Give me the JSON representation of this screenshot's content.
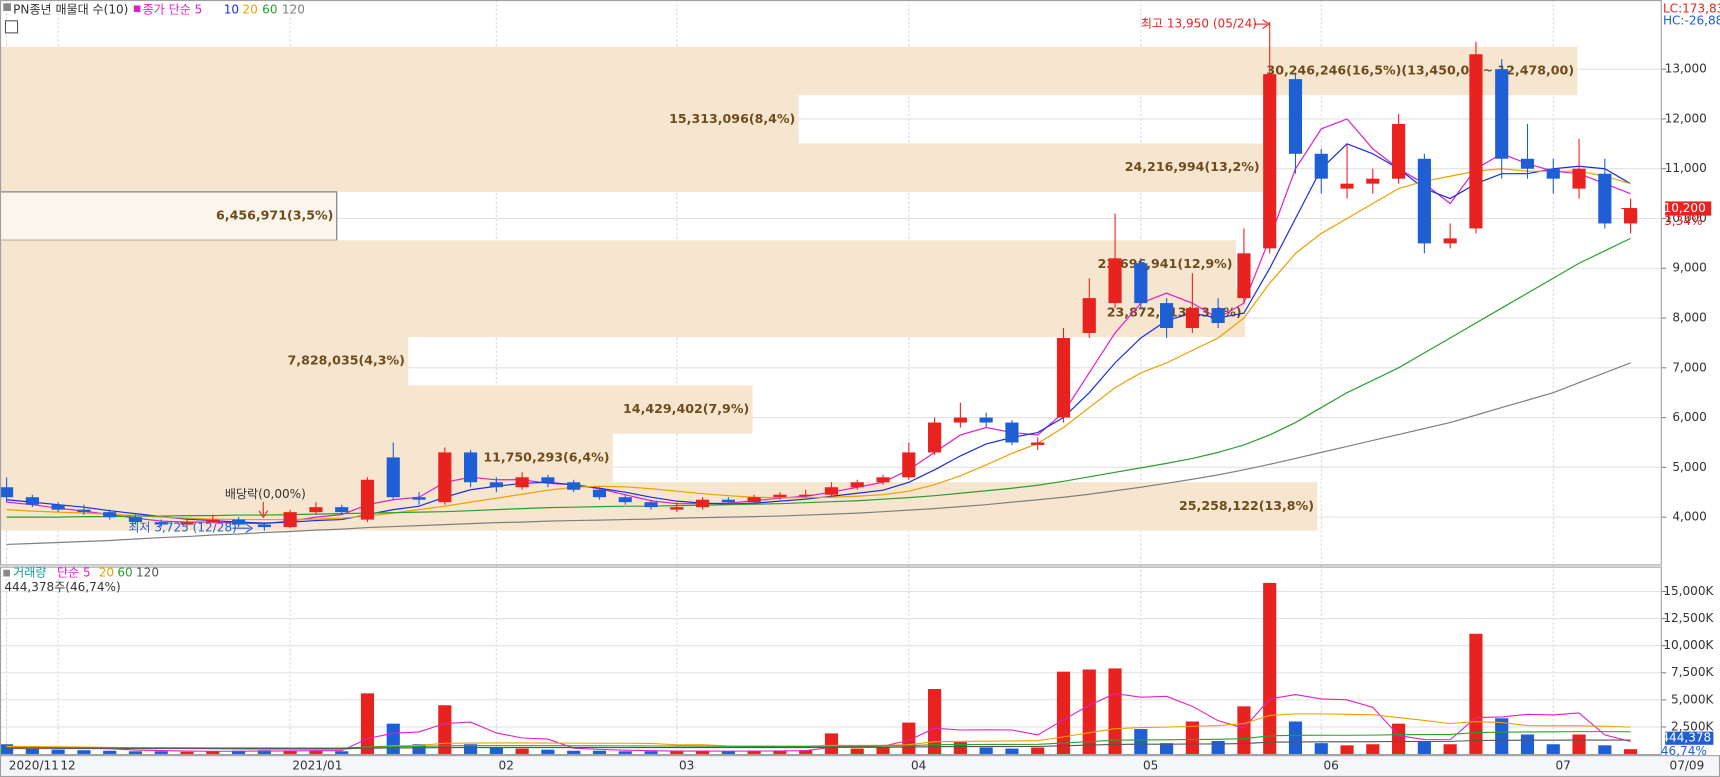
{
  "chart_data": [
    {
      "type": "candlestick",
      "title": "PN종년 매물대 수(10)",
      "categories": [
        "2020/11",
        null,
        "12",
        null,
        null,
        null,
        null,
        null,
        null,
        null,
        null,
        "2021/01",
        null,
        null,
        null,
        null,
        null,
        null,
        null,
        "02",
        null,
        null,
        null,
        null,
        null,
        null,
        "03",
        null,
        null,
        null,
        null,
        null,
        null,
        null,
        null,
        "04",
        null,
        null,
        null,
        null,
        null,
        null,
        null,
        null,
        "05",
        null,
        null,
        null,
        null,
        null,
        null,
        "06",
        null,
        null,
        null,
        null,
        null,
        null,
        null,
        null,
        "07",
        null,
        null,
        null
      ],
      "current_date": "07/09",
      "open": [
        4600,
        4400,
        4250,
        4150,
        4100,
        4000,
        3900,
        3850,
        3900,
        3950,
        3850,
        3800,
        4100,
        4200,
        3950,
        5200,
        4400,
        4300,
        5300,
        4700,
        4600,
        4800,
        4700,
        4550,
        4400,
        4300,
        4150,
        4200,
        4350,
        4300,
        4400,
        4420,
        4450,
        4600,
        4700,
        4800,
        5300,
        5900,
        6000,
        5900,
        5450,
        6000,
        7700,
        8300,
        9100,
        8300,
        7800,
        8200,
        8400,
        9400,
        12800,
        11300,
        10600,
        10700,
        10800,
        11200,
        9500,
        9800,
        13000,
        11200,
        11000,
        10600,
        10900,
        9900
      ],
      "high": [
        4800,
        4450,
        4300,
        4250,
        4150,
        4050,
        3950,
        3950,
        4050,
        4000,
        3900,
        4150,
        4300,
        4250,
        4800,
        5500,
        4500,
        5400,
        5350,
        4800,
        4900,
        4850,
        4750,
        4600,
        4450,
        4350,
        4300,
        4400,
        4400,
        4450,
        4500,
        4550,
        4700,
        4750,
        4850,
        5500,
        6000,
        6300,
        6100,
        5950,
        5600,
        7800,
        8800,
        10100,
        9200,
        8400,
        8900,
        8400,
        9800,
        13950,
        12900,
        11400,
        11500,
        11000,
        12100,
        11300,
        9900,
        13550,
        13200,
        11900,
        11200,
        11600,
        11200,
        10400
      ],
      "low": [
        4300,
        4200,
        4100,
        4050,
        3950,
        3850,
        3800,
        3820,
        3880,
        3800,
        3725,
        3780,
        4050,
        4050,
        3900,
        4350,
        4250,
        4250,
        4600,
        4500,
        4550,
        4600,
        4500,
        4350,
        4250,
        4150,
        4100,
        4150,
        4250,
        4250,
        4350,
        4400,
        4400,
        4550,
        4650,
        4750,
        5250,
        5800,
        5800,
        5450,
        5350,
        5900,
        7600,
        8200,
        8200,
        7600,
        7700,
        7800,
        8300,
        9300,
        10900,
        10500,
        10400,
        10500,
        10700,
        9300,
        9400,
        9700,
        10800,
        10800,
        10500,
        10400,
        9800,
        9700
      ],
      "close": [
        4400,
        4250,
        4150,
        4100,
        4000,
        3900,
        3850,
        3900,
        3950,
        3850,
        3800,
        4100,
        4200,
        4100,
        4750,
        4400,
        4350,
        5300,
        4700,
        4600,
        4800,
        4700,
        4550,
        4400,
        4300,
        4200,
        4200,
        4350,
        4300,
        4400,
        4450,
        4450,
        4600,
        4700,
        4800,
        5300,
        5900,
        6000,
        5900,
        5500,
        5500,
        7600,
        8400,
        9200,
        8300,
        7800,
        8200,
        7900,
        9300,
        12900,
        11300,
        10800,
        10700,
        10800,
        11900,
        9500,
        9600,
        13300,
        11200,
        11000,
        10800,
        11000,
        9900,
        10200
      ],
      "up_color": "#e8231f",
      "down_color": "#1f5fd6",
      "ma_series": [
        {
          "name": "종가 단순 5",
          "color": "#e020c8",
          "values": [
            4300,
            4250,
            4180,
            4120,
            4050,
            3980,
            3920,
            3900,
            3900,
            3880,
            3870,
            3920,
            4000,
            4050,
            4250,
            4350,
            4400,
            4700,
            4800,
            4750,
            4750,
            4680,
            4650,
            4570,
            4450,
            4330,
            4270,
            4270,
            4280,
            4330,
            4380,
            4420,
            4500,
            4600,
            4700,
            4950,
            5300,
            5650,
            5800,
            5700,
            5650,
            6100,
            6900,
            7700,
            8300,
            8500,
            8300,
            8000,
            8300,
            9600,
            11000,
            11800,
            12000,
            11400,
            11000,
            10700,
            10300,
            11000,
            11300,
            11100,
            10950,
            10900,
            10700,
            10500
          ]
        },
        {
          "name": "10",
          "color": "#1a2ee0",
          "values": [
            4350,
            4300,
            4250,
            4200,
            4130,
            4070,
            4010,
            3960,
            3930,
            3900,
            3880,
            3900,
            3930,
            3950,
            4050,
            4150,
            4220,
            4400,
            4550,
            4620,
            4680,
            4700,
            4650,
            4580,
            4500,
            4400,
            4320,
            4280,
            4260,
            4280,
            4320,
            4360,
            4420,
            4480,
            4540,
            4700,
            4950,
            5230,
            5470,
            5600,
            5700,
            6000,
            6500,
            7100,
            7600,
            7950,
            8100,
            8000,
            8100,
            9000,
            10000,
            11000,
            11500,
            11300,
            11000,
            10600,
            10400,
            10700,
            10900,
            10900,
            11000,
            11050,
            11000,
            10700
          ]
        },
        {
          "name": "20",
          "color": "#f0a000",
          "values": [
            4150,
            4120,
            4100,
            4080,
            4060,
            4030,
            4000,
            3980,
            3960,
            3950,
            3950,
            3950,
            3960,
            3980,
            4020,
            4080,
            4150,
            4220,
            4300,
            4380,
            4460,
            4540,
            4600,
            4620,
            4610,
            4570,
            4520,
            4470,
            4430,
            4400,
            4390,
            4390,
            4400,
            4420,
            4450,
            4520,
            4650,
            4830,
            5050,
            5280,
            5480,
            5800,
            6200,
            6600,
            6900,
            7100,
            7350,
            7600,
            8000,
            8700,
            9300,
            9700,
            10000,
            10300,
            10600,
            10750,
            10850,
            10950,
            11000,
            10950,
            10950,
            10950,
            10850,
            10700
          ]
        },
        {
          "name": "60",
          "color": "#2aa02a",
          "values": [
            4000,
            4000,
            4000,
            4010,
            4010,
            4020,
            4020,
            4030,
            4030,
            4040,
            4040,
            4050,
            4060,
            4070,
            4080,
            4090,
            4100,
            4110,
            4130,
            4150,
            4170,
            4190,
            4200,
            4210,
            4220,
            4220,
            4230,
            4240,
            4250,
            4260,
            4270,
            4290,
            4310,
            4330,
            4360,
            4390,
            4430,
            4480,
            4530,
            4580,
            4640,
            4720,
            4810,
            4900,
            4990,
            5080,
            5180,
            5300,
            5450,
            5650,
            5900,
            6200,
            6500,
            6750,
            7000,
            7300,
            7600,
            7900,
            8200,
            8500,
            8800,
            9100,
            9350,
            9600
          ]
        },
        {
          "name": "120",
          "color": "#808080",
          "values": [
            3450,
            3470,
            3490,
            3510,
            3530,
            3560,
            3590,
            3610,
            3640,
            3660,
            3690,
            3710,
            3740,
            3760,
            3790,
            3810,
            3830,
            3850,
            3870,
            3890,
            3900,
            3920,
            3930,
            3940,
            3950,
            3960,
            3980,
            3990,
            4000,
            4010,
            4020,
            4040,
            4060,
            4080,
            4110,
            4140,
            4170,
            4210,
            4250,
            4300,
            4350,
            4400,
            4460,
            4530,
            4600,
            4680,
            4760,
            4850,
            4950,
            5060,
            5180,
            5300,
            5420,
            5540,
            5660,
            5780,
            5900,
            6050,
            6200,
            6350,
            6500,
            6700,
            6900,
            7100
          ]
        }
      ],
      "ylim": [
        3050,
        14390
      ],
      "yticks": [
        {
          "value": 4000,
          "label": "4,000"
        },
        {
          "value": 5000,
          "label": "5,000"
        },
        {
          "value": 6000,
          "label": "6,000"
        },
        {
          "value": 7000,
          "label": "7,000"
        },
        {
          "value": 8000,
          "label": "8,000"
        },
        {
          "value": 9000,
          "label": "9,000"
        },
        {
          "value": 10000,
          "label": "10,000"
        },
        {
          "value": 11000,
          "label": "11,000"
        },
        {
          "value": 12000,
          "label": "12,000"
        },
        {
          "value": 13000,
          "label": "13,000"
        }
      ],
      "grid": true,
      "profile": {
        "color": "#f6e6d0",
        "highs": [
          13450,
          12478,
          11506,
          10534,
          9562,
          8590,
          7618,
          6646,
          5674,
          4702
        ],
        "lows": [
          12478,
          11506,
          10534,
          9562,
          8590,
          7618,
          6646,
          5674,
          4702,
          3730
        ],
        "volumes": [
          30246246,
          15313096,
          24216994,
          6456971,
          23696941,
          23872513,
          7828035,
          14429402,
          11750293,
          25258122
        ],
        "value_labels": [
          "30,246,246(16,5%)(13,450,00 ~ 12,478,00)",
          "15,313,096(8,4%)",
          "24,216,994(13,2%)",
          "6,456,971(3,5%)",
          "23,696,941(12,9%)",
          "23,872,513(13,0%)",
          "7,828,035(4,3%)",
          "14,429,402(7,9%)",
          "11,750,293(6,4%)",
          "25,258,122(13,8%)"
        ]
      },
      "annotations": {
        "high_label": "최고 13,950 (05/24)",
        "low_label": "최저 3,725 (12/28)",
        "ex_dividend_label": "배당락(0,00%)"
      },
      "current_price_label": "10,200",
      "change_label": "3,34%",
      "lc_label": "LC:173,83",
      "hc_label": "HC:-26,88"
    },
    {
      "type": "bar",
      "title": "거래량",
      "title_color": "#139c9c",
      "values": [
        900,
        500,
        400,
        350,
        300,
        250,
        250,
        200,
        250,
        300,
        350,
        300,
        300,
        250,
        5600,
        2800,
        900,
        4500,
        900,
        600,
        500,
        400,
        300,
        300,
        250,
        250,
        250,
        300,
        250,
        300,
        300,
        350,
        1900,
        500,
        600,
        2900,
        6000,
        1100,
        600,
        500,
        600,
        7600,
        7800,
        7900,
        2300,
        1000,
        3000,
        1200,
        4400,
        15800,
        3000,
        1000,
        800,
        900,
        2800,
        1200,
        900,
        11100,
        3300,
        1800,
        900,
        1800,
        800,
        444.378
      ],
      "ma_series": [
        {
          "name": "단순 5",
          "color": "#e020c8",
          "values": [
            700,
            650,
            600,
            550,
            490,
            360,
            310,
            270,
            250,
            250,
            270,
            280,
            300,
            300,
            1420,
            1920,
            2030,
            2810,
            2940,
            1940,
            1480,
            1380,
            540,
            420,
            350,
            300,
            270,
            270,
            260,
            270,
            280,
            300,
            620,
            660,
            730,
            1250,
            2380,
            2220,
            2240,
            2220,
            1760,
            3160,
            4500,
            5580,
            5240,
            5320,
            4400,
            3080,
            2380,
            5080,
            5480,
            5080,
            5000,
            4300,
            1700,
            1340,
            1320,
            3360,
            3420,
            3660,
            3600,
            3780,
            1760,
            1150
          ]
        },
        {
          "name": "20",
          "color": "#f0a000",
          "values": [
            700,
            690,
            670,
            640,
            610,
            580,
            550,
            520,
            490,
            460,
            430,
            420,
            410,
            400,
            640,
            760,
            790,
            990,
            1010,
            1020,
            1020,
            1010,
            1000,
            990,
            990,
            970,
            850,
            860,
            740,
            740,
            740,
            720,
            790,
            790,
            800,
            860,
            1130,
            1170,
            1180,
            1200,
            1220,
            1580,
            1960,
            2340,
            2440,
            2480,
            2560,
            2620,
            2800,
            3560,
            3700,
            3700,
            3660,
            3630,
            3360,
            3100,
            2800,
            3000,
            2900,
            2620,
            2600,
            2600,
            2560,
            2480
          ]
        },
        {
          "name": "60",
          "color": "#2aa02a",
          "values": [
            600,
            600,
            590,
            590,
            580,
            580,
            570,
            570,
            560,
            560,
            560,
            550,
            550,
            550,
            640,
            680,
            690,
            760,
            770,
            770,
            770,
            770,
            760,
            760,
            750,
            740,
            730,
            720,
            710,
            700,
            700,
            700,
            720,
            720,
            730,
            770,
            860,
            870,
            880,
            880,
            890,
            1010,
            1140,
            1270,
            1300,
            1310,
            1350,
            1360,
            1420,
            1680,
            1720,
            1730,
            1730,
            1740,
            1780,
            1790,
            1800,
            1970,
            2010,
            2030,
            2040,
            2060,
            2060,
            2050
          ]
        },
        {
          "name": "120",
          "color": "#555555",
          "values": [
            500,
            500,
            500,
            500,
            500,
            500,
            500,
            500,
            500,
            500,
            500,
            500,
            500,
            500,
            540,
            560,
            560,
            600,
            600,
            600,
            600,
            600,
            600,
            600,
            600,
            600,
            600,
            600,
            600,
            600,
            600,
            600,
            620,
            620,
            620,
            640,
            680,
            690,
            690,
            690,
            700,
            760,
            820,
            880,
            900,
            900,
            920,
            930,
            960,
            1090,
            1110,
            1120,
            1120,
            1130,
            1150,
            1150,
            1160,
            1240,
            1260,
            1270,
            1280,
            1290,
            1290,
            1290
          ]
        }
      ],
      "ylim": [
        0,
        17000
      ],
      "yticks": [
        {
          "value": 2500,
          "label": "2,500K"
        },
        {
          "value": 5000,
          "label": "5,000K"
        },
        {
          "value": 7500,
          "label": "7,500K"
        },
        {
          "value": 10000,
          "label": "10,000K"
        },
        {
          "value": 12500,
          "label": "12,500K"
        },
        {
          "value": 15000,
          "label": "15,000K"
        }
      ],
      "summary_label": "444,378주(46,74%)",
      "current_label": "444,378",
      "current_pct_label": "46,74%"
    }
  ]
}
